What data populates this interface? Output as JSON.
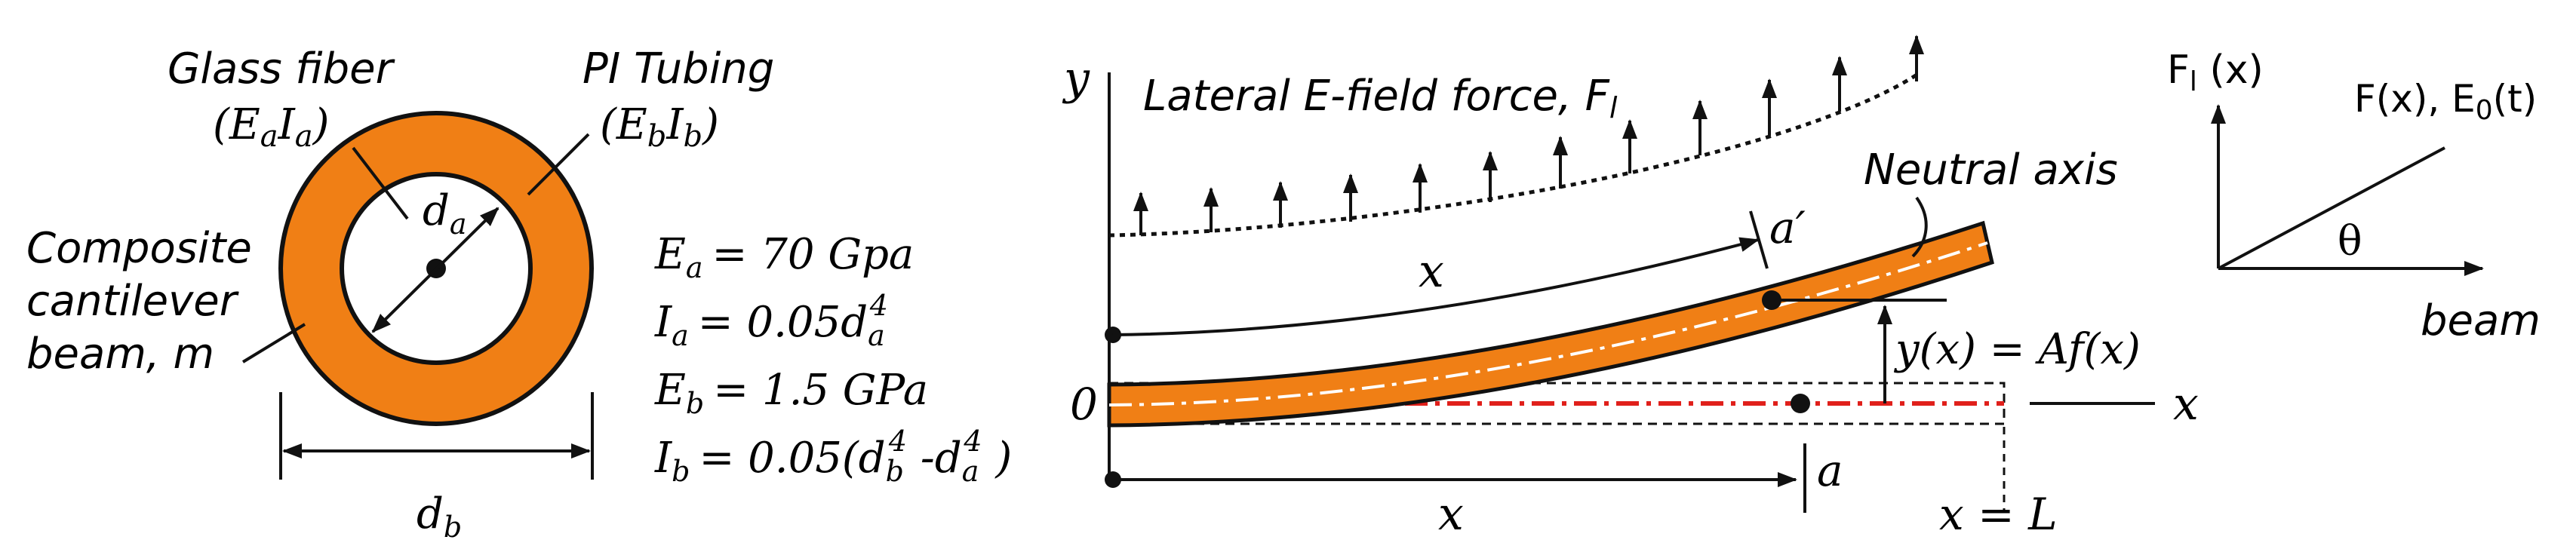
{
  "colors": {
    "orange": "#F07F15",
    "red": "#E0201B",
    "ink": "#111111",
    "white": "#ffffff"
  },
  "cross_section": {
    "glass_fiber_label": "Glass fiber",
    "glass_fiber_prop": "(E",
    "glass_fiber_sub1": "a",
    "glass_fiber_mid": "I",
    "glass_fiber_sub2": "a",
    "glass_fiber_close": ")",
    "pi_tubing_label": "PI Tubing",
    "pi_tubing_prop": "(E",
    "pi_tubing_sub1": "b",
    "pi_tubing_mid": "I",
    "pi_tubing_sub2": "b",
    "pi_tubing_close": ")",
    "composite_line1": "Composite",
    "composite_line2": "cantilever",
    "composite_line3": "beam, m",
    "da_main": "d",
    "da_sub": "a",
    "db_main": "d",
    "db_sub": "b"
  },
  "equations": {
    "ea_main": "E",
    "ea_sub": "a",
    "ea_rhs": "= 70 Gpa",
    "ia_main": "I",
    "ia_sub": "a",
    "ia_rhs": "= 0.05",
    "ia_d": "d",
    "ia_dsub": "a",
    "ia_pow": "4",
    "eb_main": "E",
    "eb_sub": "b",
    "eb_rhs": "= 1.5 GPa",
    "ib_main": "I",
    "ib_sub": "b",
    "ib_rhs": "= 0.05(",
    "ib_d1": "d",
    "ib_d1sub": "b",
    "ib_d1pow": "4",
    "ib_minus": " -",
    "ib_d2": "d",
    "ib_d2sub": "a",
    "ib_d2pow": "4",
    "ib_close": " )"
  },
  "beam": {
    "y_axis_label": "y",
    "force_label": "Lateral E-field force, F",
    "force_sub": "l",
    "neutral_axis_label": "Neutral axis",
    "origin_label": "0",
    "x_axis_label": "x",
    "x_arc_label": "x",
    "a_prime_label": "a′",
    "deflection_label": "y(x) = Af(x)",
    "x_bottom_label": "x",
    "a_label": "a",
    "end_label": "x = L"
  },
  "force_plot": {
    "y_label": "F",
    "y_label_sub": "l",
    "y_label_rest": " (x)",
    "line_label": "F(x), E",
    "line_label_sub": "0",
    "line_label_rest": "(t)",
    "theta_label": "θ",
    "x_label": "beam"
  }
}
